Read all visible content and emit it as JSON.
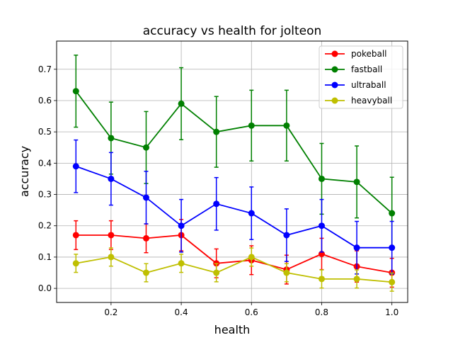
{
  "chart_data": {
    "type": "line",
    "title": "accuracy vs health for jolteon",
    "xlabel": "health",
    "ylabel": "accuracy",
    "x": [
      0.1,
      0.2,
      0.3,
      0.4,
      0.5,
      0.6,
      0.7,
      0.8,
      0.9,
      1.0
    ],
    "xlim": [
      0.045,
      1.045
    ],
    "ylim": [
      -0.045,
      0.79
    ],
    "xticks": [
      0.2,
      0.4,
      0.6,
      0.8,
      1.0
    ],
    "xtick_labels": [
      "0.2",
      "0.4",
      "0.6",
      "0.8",
      "1.0"
    ],
    "yticks": [
      0.0,
      0.1,
      0.2,
      0.3,
      0.4,
      0.5,
      0.6,
      0.7
    ],
    "ytick_labels": [
      "0.0",
      "0.1",
      "0.2",
      "0.3",
      "0.4",
      "0.5",
      "0.6",
      "0.7"
    ],
    "grid": true,
    "legend_position": "top-right",
    "series": [
      {
        "name": "pokeball",
        "color": "#ff0000",
        "values": [
          0.17,
          0.17,
          0.16,
          0.17,
          0.08,
          0.09,
          0.06,
          0.11,
          0.07,
          0.05
        ],
        "errors": [
          0.046,
          0.046,
          0.046,
          0.05,
          0.046,
          0.046,
          0.046,
          0.05,
          0.05,
          0.046
        ]
      },
      {
        "name": "fastball",
        "color": "#008000",
        "values": [
          0.63,
          0.48,
          0.45,
          0.59,
          0.5,
          0.52,
          0.52,
          0.35,
          0.34,
          0.24
        ],
        "errors": [
          0.115,
          0.115,
          0.115,
          0.115,
          0.113,
          0.113,
          0.113,
          0.113,
          0.115,
          0.115
        ]
      },
      {
        "name": "ultraball",
        "color": "#0000ff",
        "values": [
          0.39,
          0.35,
          0.29,
          0.2,
          0.27,
          0.24,
          0.17,
          0.2,
          0.13,
          0.13
        ],
        "errors": [
          0.084,
          0.084,
          0.084,
          0.084,
          0.084,
          0.084,
          0.084,
          0.084,
          0.084,
          0.084
        ]
      },
      {
        "name": "heavyball",
        "color": "#bfbf00",
        "values": [
          0.08,
          0.1,
          0.05,
          0.08,
          0.05,
          0.1,
          0.05,
          0.03,
          0.03,
          0.02
        ],
        "errors": [
          0.029,
          0.029,
          0.029,
          0.029,
          0.029,
          0.029,
          0.029,
          0.029,
          0.029,
          0.029
        ]
      }
    ]
  }
}
